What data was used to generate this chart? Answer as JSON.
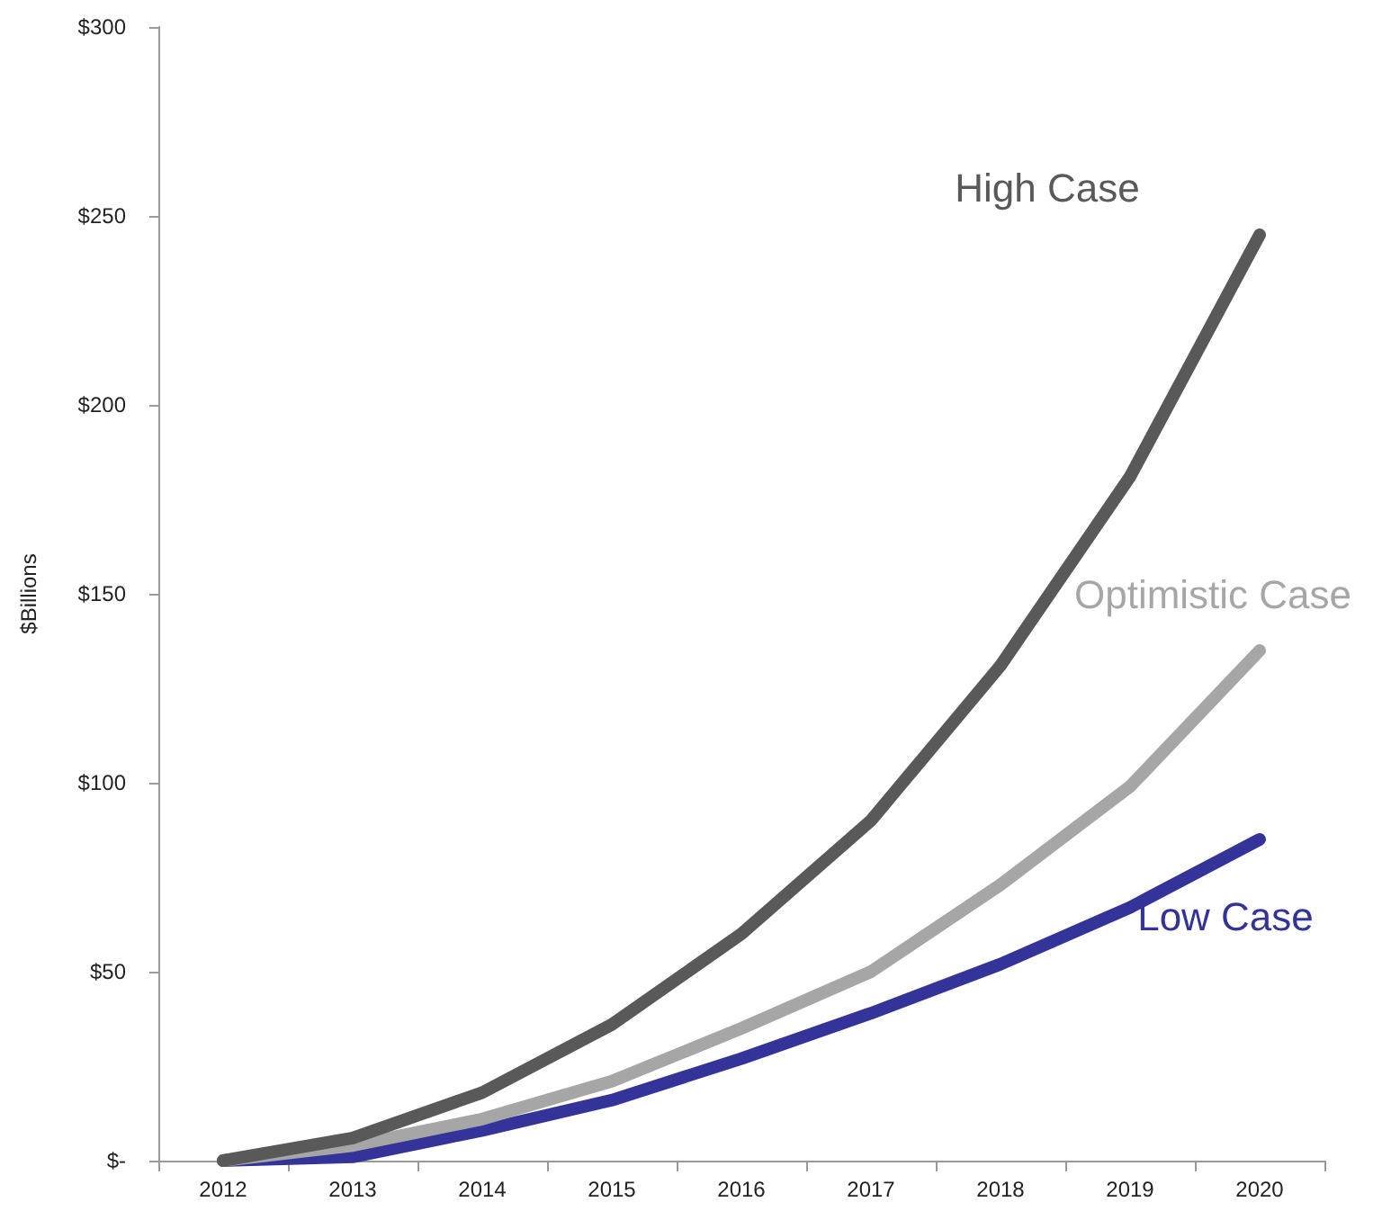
{
  "chart_data": {
    "type": "line",
    "ylabel": "$Billions",
    "categories": [
      "2012",
      "2013",
      "2014",
      "2015",
      "2016",
      "2017",
      "2018",
      "2019",
      "2020"
    ],
    "series": [
      {
        "name": "High Case",
        "color": "#595959",
        "values": [
          0,
          6,
          18,
          36,
          60,
          90,
          131,
          181,
          245
        ]
      },
      {
        "name": "Optimistic Case",
        "color": "#a6a6a6",
        "values": [
          0,
          4,
          11,
          21,
          35,
          50,
          73,
          99,
          135
        ]
      },
      {
        "name": "Low Case",
        "color": "#333399",
        "values": [
          0,
          1,
          8,
          16,
          27,
          39,
          52,
          67,
          85
        ]
      }
    ],
    "ylim": [
      0,
      300
    ],
    "yticks": [
      {
        "value": 0,
        "label": "$-"
      },
      {
        "value": 50,
        "label": "$50"
      },
      {
        "value": 100,
        "label": "$100"
      },
      {
        "value": 150,
        "label": "$150"
      },
      {
        "value": 200,
        "label": "$200"
      },
      {
        "value": 250,
        "label": "$250"
      },
      {
        "value": 300,
        "label": "$300"
      }
    ],
    "grid": false,
    "marker": "none",
    "line_style": "solid"
  }
}
